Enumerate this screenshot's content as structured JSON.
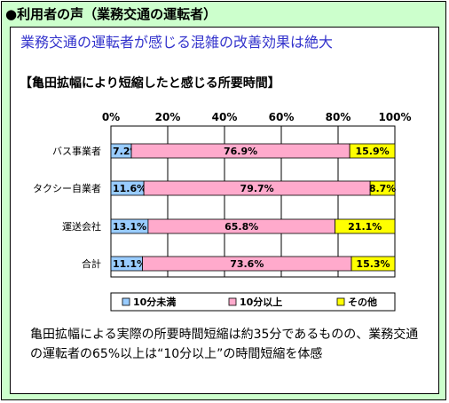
{
  "header": "●利用者の声（業務交通の運転者）",
  "headline": "業務交通の運転者が感じる混雑の改善効果は絶大",
  "footnote": "亀田拡幅による実際の所要時間短縮は約35分であるものの、業務交通の運転者の65%以上は“10分以上”の時間短縮を体感",
  "chart_data": {
    "type": "bar",
    "orientation": "horizontal",
    "stacked": true,
    "percent": true,
    "title": "【亀田拡幅により短縮したと感じる所要時間】",
    "xlim": [
      0,
      100
    ],
    "x_ticks": [
      "0%",
      "20%",
      "40%",
      "60%",
      "80%",
      "100%"
    ],
    "categories": [
      "バス事業者",
      "タクシー自業者",
      "運送会社",
      "合計"
    ],
    "series": [
      {
        "name": "10分未満",
        "color": "#99ccff",
        "values": [
          7.2,
          11.6,
          13.1,
          11.1
        ]
      },
      {
        "name": "10分以上",
        "color": "#ffaacc",
        "values": [
          76.9,
          79.7,
          65.8,
          73.6
        ]
      },
      {
        "name": "その他",
        "color": "#ffff00",
        "values": [
          15.9,
          8.7,
          21.1,
          15.3
        ]
      }
    ],
    "legend_position": "bottom",
    "grid": true
  }
}
